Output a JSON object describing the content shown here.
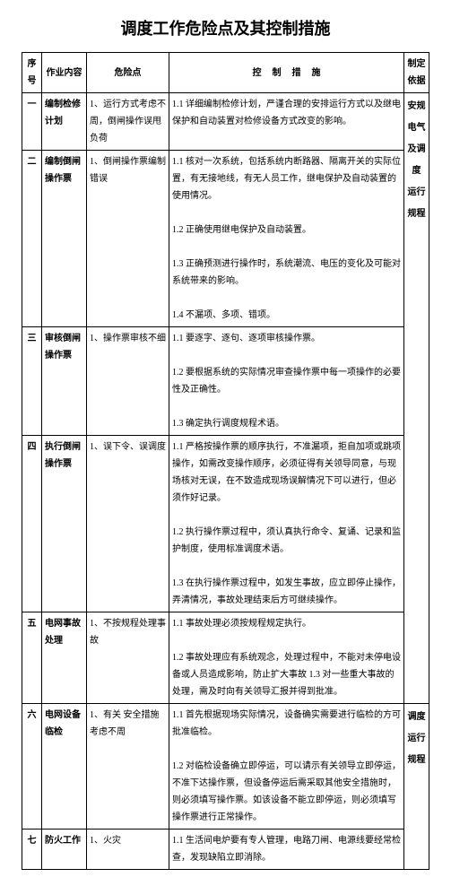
{
  "title": "调度工作危险点及其控制措施",
  "header": {
    "seq": "序号",
    "work": "作业内容",
    "risk": "危险点",
    "measure": "控制措施",
    "basis": "制定依据"
  },
  "basis_text": "安规 电气 及调度 运行 规程",
  "basis_text_2": "调度 运行 规程",
  "rows": [
    {
      "seq": "一",
      "work": "编制检修计划",
      "risk": "1、运行方式考虑不周，倒闸操作误甩负荷",
      "measure": "1.1 详细编制检修计划，严谨合理的安排运行方式以及继电保护和自动装置对检修设备方式改变的影响。"
    },
    {
      "seq": "二",
      "work": "编制倒闸操作票",
      "risk": "1、倒闸操作票编制错误",
      "measure": "1.1 核对一次系统，包括系统内断路器、隔离开关的实际位置，有无接地线，有无人员工作，继电保护及自动装置的使用情况。\n1.2 正确使用继电保护及自动装置。\n1.3 正确预测进行操作时，系统潮流、电压的变化及可能对系统带来的影响。\n1.4 不漏项、多项、错项。"
    },
    {
      "seq": "三",
      "work": "审核倒闸操作票",
      "risk": "1、操作票审核不细",
      "measure": "1.1 要逐字、逐句、逐项审核操作票。\n1.2 要根据系统的实际情况审查操作票中每一项操作的必要性及正确性。\n1.3 确定执行调度规程术语。"
    },
    {
      "seq": "四",
      "work": "执行倒闸操作票",
      "risk": "1、误下令、误调度",
      "measure": "1.1 严格按操作票的顺序执行，不准漏项，拒自加项或跳项操作，如需改变操作顺序，必须征得有关领导同意，与现场核对无误，在不致造成现场误解情况下可以进行，但必须作好记录。\n1.2 执行操作票过程中，须认真执行命令、复诵、记录和监护制度，使用标准调度术语。\n1.3 在执行操作票过程中，如发生事故，应立即停止操作，弄清情况，事故处理结束后方可继续操作。"
    },
    {
      "seq": "五",
      "work": "电网事故处理",
      "risk": "1、不按规程处理事故",
      "measure": "1.1 事故处理必须按规程规定执行。\n1.2 事故处理应有系统观念，处理过程中，不能对未停电设备或人员造成影响，防止扩大事故 1.3 对一些重大事故的处理，需及时向有关领导汇报并得到批准。"
    },
    {
      "seq": "六",
      "work": "电网设备临检",
      "risk": "1、有关 安全措施 考虑不周",
      "measure": "1.1 首先根据现场实际情况，设备确实需要进行临检的方可批准临检。\n1.2 对临检设备确立即停运，可以请示有关领导立即停运，不准下达操作票，但设备停运后需采取其他安全措施时，则必须填写操作票。如该设备不能立即停运，则必须填写操作票进行正常操作。"
    },
    {
      "seq": "七",
      "work": "防火工作",
      "risk": "1、火灾",
      "measure": "1.1 生活间电炉要有专人管理，电路刀闸、电源线要经常检查，发现缺陷立即消除。"
    }
  ]
}
